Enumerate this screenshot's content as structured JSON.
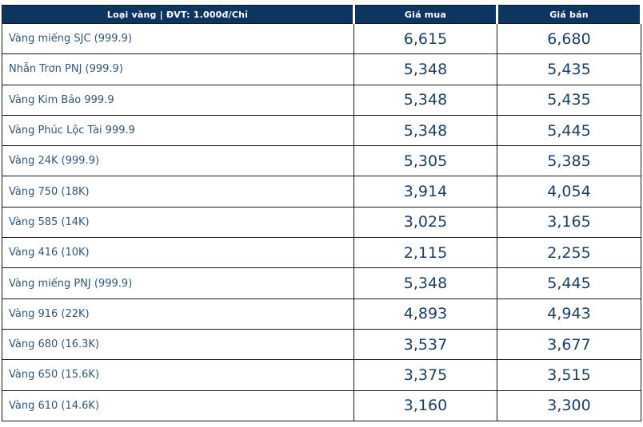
{
  "table": {
    "header": {
      "type_label": "Loại vàng | ĐVT: 1.000đ/Chỉ",
      "buy_label": "Giá mua",
      "sell_label": "Giá bán"
    },
    "colors": {
      "header_bg": "#0c3561",
      "header_text": "#ffffff",
      "label_text": "#31567c",
      "price_text": "#1b3f66",
      "border": "#1a1a1a"
    },
    "rows": [
      {
        "label": "Vàng miếng SJC (999.9)",
        "buy": "6,615",
        "sell": "6,680"
      },
      {
        "label": "Nhẫn Trơn PNJ (999.9)",
        "buy": "5,348",
        "sell": "5,435"
      },
      {
        "label": "Vàng Kim Bảo 999.9",
        "buy": "5,348",
        "sell": "5,435"
      },
      {
        "label": "Vàng Phúc Lộc Tài 999.9",
        "buy": "5,348",
        "sell": "5,445"
      },
      {
        "label": "Vàng 24K (999.9)",
        "buy": "5,305",
        "sell": "5,385"
      },
      {
        "label": "Vàng 750 (18K)",
        "buy": "3,914",
        "sell": "4,054"
      },
      {
        "label": "Vàng 585 (14K)",
        "buy": "3,025",
        "sell": "3,165"
      },
      {
        "label": "Vàng 416 (10K)",
        "buy": "2,115",
        "sell": "2,255"
      },
      {
        "label": "Vàng miếng PNJ (999.9)",
        "buy": "5,348",
        "sell": "5,445"
      },
      {
        "label": "Vàng 916 (22K)",
        "buy": "4,893",
        "sell": "4,943"
      },
      {
        "label": "Vàng 680 (16.3K)",
        "buy": "3,537",
        "sell": "3,677"
      },
      {
        "label": "Vàng 650 (15.6K)",
        "buy": "3,375",
        "sell": "3,515"
      },
      {
        "label": "Vàng 610 (14.6K)",
        "buy": "3,160",
        "sell": "3,300"
      }
    ]
  }
}
